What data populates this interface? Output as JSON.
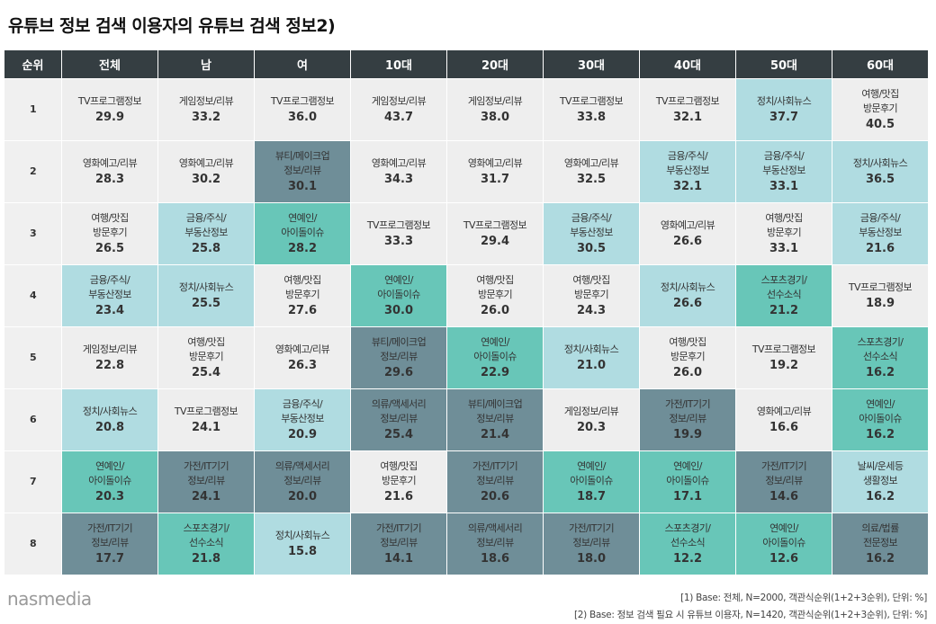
{
  "title": "유튜브 정보 검색 이용자의 유튜브 검색 정보2)",
  "columns": [
    "순위",
    "전체",
    "남",
    "여",
    "10대",
    "20대",
    "30대",
    "40대",
    "50대",
    "60대"
  ],
  "category_colors": {
    "game": "#eeeeee",
    "tv": "#eeeeee",
    "movie": "#eeeeee",
    "travel": "#eeeeee",
    "politics": "#b0dce1",
    "finance": "#b0dce1",
    "weather": "#b0dce1",
    "sports": "#68c6b8",
    "ent": "#68c6b8",
    "beauty": "#6f8e98",
    "fashion": "#6f8e98",
    "digital": "#6f8e98",
    "medical": "#6f8e98"
  },
  "rows": [
    {
      "rank": "1",
      "cells": [
        {
          "label": "TV프로그램정보",
          "value": "29.9",
          "cat": "tv"
        },
        {
          "label": "게임정보/리뷰",
          "value": "33.2",
          "cat": "game"
        },
        {
          "label": "TV프로그램정보",
          "value": "36.0",
          "cat": "tv"
        },
        {
          "label": "게임정보/리뷰",
          "value": "43.7",
          "cat": "game"
        },
        {
          "label": "게임정보/리뷰",
          "value": "38.0",
          "cat": "game"
        },
        {
          "label": "TV프로그램정보",
          "value": "33.8",
          "cat": "tv"
        },
        {
          "label": "TV프로그램정보",
          "value": "32.1",
          "cat": "tv"
        },
        {
          "label": "정치/사회뉴스",
          "value": "37.7",
          "cat": "politics"
        },
        {
          "label": "여행/맛집\n방문후기",
          "value": "40.5",
          "cat": "travel"
        }
      ]
    },
    {
      "rank": "2",
      "cells": [
        {
          "label": "영화예고/리뷰",
          "value": "28.3",
          "cat": "movie"
        },
        {
          "label": "영화예고/리뷰",
          "value": "30.2",
          "cat": "movie"
        },
        {
          "label": "뷰티/메이크업\n정보/리뷰",
          "value": "30.1",
          "cat": "beauty"
        },
        {
          "label": "영화예고/리뷰",
          "value": "34.3",
          "cat": "movie"
        },
        {
          "label": "영화예고/리뷰",
          "value": "31.7",
          "cat": "movie"
        },
        {
          "label": "영화예고/리뷰",
          "value": "32.5",
          "cat": "movie"
        },
        {
          "label": "금융/주식/\n부동산정보",
          "value": "32.1",
          "cat": "finance"
        },
        {
          "label": "금융/주식/\n부동산정보",
          "value": "33.1",
          "cat": "finance"
        },
        {
          "label": "정치/사회뉴스",
          "value": "36.5",
          "cat": "politics"
        }
      ]
    },
    {
      "rank": "3",
      "cells": [
        {
          "label": "여행/맛집\n방문후기",
          "value": "26.5",
          "cat": "travel"
        },
        {
          "label": "금융/주식/\n부동산정보",
          "value": "25.8",
          "cat": "finance"
        },
        {
          "label": "연예인/\n아이돌이슈",
          "value": "28.2",
          "cat": "ent"
        },
        {
          "label": "TV프로그램정보",
          "value": "33.3",
          "cat": "tv"
        },
        {
          "label": "TV프로그램정보",
          "value": "29.4",
          "cat": "tv"
        },
        {
          "label": "금융/주식/\n부동산정보",
          "value": "30.5",
          "cat": "finance"
        },
        {
          "label": "영화예고/리뷰",
          "value": "26.6",
          "cat": "movie"
        },
        {
          "label": "여행/맛집\n방문후기",
          "value": "33.1",
          "cat": "travel"
        },
        {
          "label": "금융/주식/\n부동산정보",
          "value": "21.6",
          "cat": "finance"
        }
      ]
    },
    {
      "rank": "4",
      "cells": [
        {
          "label": "금융/주식/\n부동산정보",
          "value": "23.4",
          "cat": "finance"
        },
        {
          "label": "정치/사회뉴스",
          "value": "25.5",
          "cat": "politics"
        },
        {
          "label": "여행/맛집\n방문후기",
          "value": "27.6",
          "cat": "travel"
        },
        {
          "label": "연예인/\n아이돌이슈",
          "value": "30.0",
          "cat": "ent"
        },
        {
          "label": "여행/맛집\n방문후기",
          "value": "26.0",
          "cat": "travel"
        },
        {
          "label": "여행/맛집\n방문후기",
          "value": "24.3",
          "cat": "travel"
        },
        {
          "label": "정치/사회뉴스",
          "value": "26.6",
          "cat": "politics"
        },
        {
          "label": "스포츠경기/\n선수소식",
          "value": "21.2",
          "cat": "sports"
        },
        {
          "label": "TV프로그램정보",
          "value": "18.9",
          "cat": "tv"
        }
      ]
    },
    {
      "rank": "5",
      "cells": [
        {
          "label": "게임정보/리뷰",
          "value": "22.8",
          "cat": "game"
        },
        {
          "label": "여행/맛집\n방문후기",
          "value": "25.4",
          "cat": "travel"
        },
        {
          "label": "영화예고/리뷰",
          "value": "26.3",
          "cat": "movie"
        },
        {
          "label": "뷰티/메이크업\n정보/리뷰",
          "value": "29.6",
          "cat": "beauty"
        },
        {
          "label": "연예인/\n아이돌이슈",
          "value": "22.9",
          "cat": "ent"
        },
        {
          "label": "정치/사회뉴스",
          "value": "21.0",
          "cat": "politics"
        },
        {
          "label": "여행/맛집\n방문후기",
          "value": "26.0",
          "cat": "travel"
        },
        {
          "label": "TV프로그램정보",
          "value": "19.2",
          "cat": "tv"
        },
        {
          "label": "스포츠경기/\n선수소식",
          "value": "16.2",
          "cat": "sports"
        }
      ]
    },
    {
      "rank": "6",
      "cells": [
        {
          "label": "정치/사회뉴스",
          "value": "20.8",
          "cat": "politics"
        },
        {
          "label": "TV프로그램정보",
          "value": "24.1",
          "cat": "tv"
        },
        {
          "label": "금융/주식/\n부동산정보",
          "value": "20.9",
          "cat": "finance"
        },
        {
          "label": "의류/액세서리\n정보/리뷰",
          "value": "25.4",
          "cat": "fashion"
        },
        {
          "label": "뷰티/메이크업\n정보/리뷰",
          "value": "21.4",
          "cat": "beauty"
        },
        {
          "label": "게임정보/리뷰",
          "value": "20.3",
          "cat": "game"
        },
        {
          "label": "가전/IT기기\n정보/리뷰",
          "value": "19.9",
          "cat": "digital"
        },
        {
          "label": "영화예고/리뷰",
          "value": "16.6",
          "cat": "movie"
        },
        {
          "label": "연예인/\n아이돌이슈",
          "value": "16.2",
          "cat": "ent"
        }
      ]
    },
    {
      "rank": "7",
      "cells": [
        {
          "label": "연예인/\n아이돌이슈",
          "value": "20.3",
          "cat": "ent"
        },
        {
          "label": "가전/IT기기\n정보/리뷰",
          "value": "24.1",
          "cat": "digital"
        },
        {
          "label": "의류/액세서리\n정보/리뷰",
          "value": "20.0",
          "cat": "fashion"
        },
        {
          "label": "여행/맛집\n방문후기",
          "value": "21.6",
          "cat": "travel"
        },
        {
          "label": "가전/IT기기\n정보/리뷰",
          "value": "20.6",
          "cat": "digital"
        },
        {
          "label": "연예인/\n아이돌이슈",
          "value": "18.7",
          "cat": "ent"
        },
        {
          "label": "연예인/\n아이돌이슈",
          "value": "17.1",
          "cat": "ent"
        },
        {
          "label": "가전/IT기기\n정보/리뷰",
          "value": "14.6",
          "cat": "digital"
        },
        {
          "label": "날씨/운세등\n생활정보",
          "value": "16.2",
          "cat": "weather"
        }
      ]
    },
    {
      "rank": "8",
      "cells": [
        {
          "label": "가전/IT기기\n정보/리뷰",
          "value": "17.7",
          "cat": "digital"
        },
        {
          "label": "스포츠경기/\n선수소식",
          "value": "21.8",
          "cat": "sports"
        },
        {
          "label": "정치/사회뉴스",
          "value": "15.8",
          "cat": "politics"
        },
        {
          "label": "가전/IT기기\n정보/리뷰",
          "value": "14.1",
          "cat": "digital"
        },
        {
          "label": "의류/액세서리\n정보/리뷰",
          "value": "18.6",
          "cat": "fashion"
        },
        {
          "label": "가전/IT기기\n정보/리뷰",
          "value": "18.0",
          "cat": "digital"
        },
        {
          "label": "스포츠경기/\n선수소식",
          "value": "12.2",
          "cat": "sports"
        },
        {
          "label": "연예인/\n아이돌이슈",
          "value": "12.6",
          "cat": "ent"
        },
        {
          "label": "의료/법률\n전문정보",
          "value": "16.2",
          "cat": "medical"
        }
      ]
    }
  ],
  "footer": {
    "logo": "nasmedia",
    "note1": "[1) Base: 전체, N=2000, 객관식순위(1+2+3순위), 단위: %]",
    "note2": "[2) Base: 정보 검색 필요 시 유튜브 이용자, N=1420, 객관식순위(1+2+3순위), 단위: %]"
  }
}
